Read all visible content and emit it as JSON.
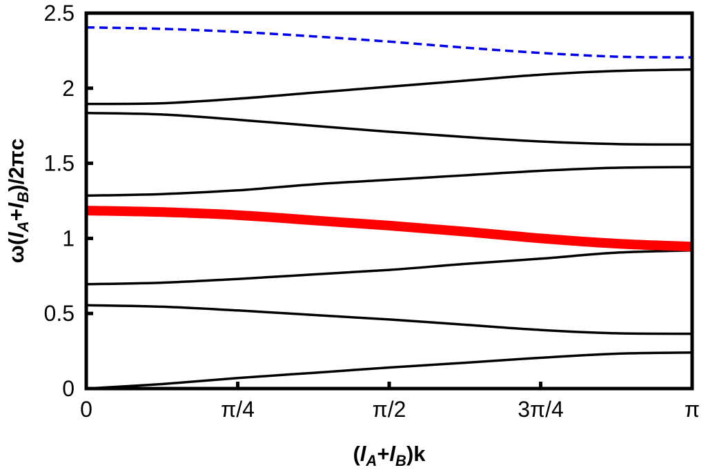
{
  "chart_data": {
    "type": "line",
    "title": "",
    "xlim": [
      0,
      3.14159
    ],
    "ylim": [
      0,
      2.5
    ],
    "grid": false,
    "xlabel_parts": [
      "(",
      "l",
      "A",
      "+",
      "l",
      "B",
      ")k"
    ],
    "ylabel_parts": [
      "ω(",
      "l",
      "A",
      "+",
      "l",
      "B",
      ")/2πc"
    ],
    "x_ticks": [
      {
        "value": 0,
        "label": "0"
      },
      {
        "value": 0.7854,
        "label": "π/4"
      },
      {
        "value": 1.5708,
        "label": "π/2"
      },
      {
        "value": 2.3562,
        "label": "3π/4"
      },
      {
        "value": 3.14159,
        "label": "π"
      }
    ],
    "y_ticks": [
      {
        "value": 0,
        "label": "0"
      },
      {
        "value": 0.5,
        "label": "0.5"
      },
      {
        "value": 1,
        "label": "1"
      },
      {
        "value": 1.5,
        "label": "1.5"
      },
      {
        "value": 2,
        "label": "2"
      },
      {
        "value": 2.5,
        "label": "2.5"
      }
    ],
    "x": [
      0,
      0.3927,
      0.7854,
      1.1781,
      1.5708,
      1.9635,
      2.3562,
      2.7489,
      3.14159
    ],
    "series": [
      {
        "style": "solid",
        "color": "#000000",
        "values": [
          0.0,
          0.03,
          0.07,
          0.105,
          0.14,
          0.172,
          0.205,
          0.232,
          0.24
        ]
      },
      {
        "style": "solid",
        "color": "#000000",
        "values": [
          0.555,
          0.545,
          0.52,
          0.49,
          0.46,
          0.425,
          0.39,
          0.368,
          0.365
        ]
      },
      {
        "style": "solid",
        "color": "#000000",
        "values": [
          0.695,
          0.705,
          0.73,
          0.76,
          0.79,
          0.83,
          0.865,
          0.905,
          0.92
        ]
      },
      {
        "style": "thick",
        "color": "#ff0000",
        "values": [
          1.185,
          1.175,
          1.155,
          1.12,
          1.085,
          1.045,
          1.0,
          0.965,
          0.945
        ]
      },
      {
        "style": "solid",
        "color": "#000000",
        "values": [
          1.285,
          1.295,
          1.32,
          1.36,
          1.39,
          1.42,
          1.45,
          1.47,
          1.475
        ]
      },
      {
        "style": "solid",
        "color": "#000000",
        "values": [
          1.835,
          1.825,
          1.79,
          1.75,
          1.71,
          1.675,
          1.645,
          1.628,
          1.625
        ]
      },
      {
        "style": "solid",
        "color": "#000000",
        "values": [
          1.895,
          1.9,
          1.93,
          1.97,
          2.01,
          2.05,
          2.09,
          2.115,
          2.125
        ]
      },
      {
        "style": "dashed",
        "color": "#0000ee",
        "values": [
          2.405,
          2.395,
          2.375,
          2.345,
          2.31,
          2.27,
          2.235,
          2.21,
          2.205
        ]
      }
    ]
  }
}
